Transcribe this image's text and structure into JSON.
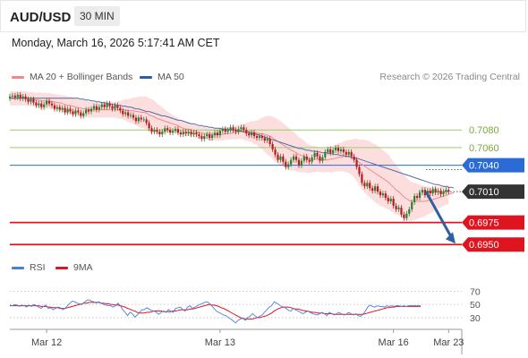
{
  "header": {
    "symbol": "AUD/USD",
    "timeframe": "30 MIN",
    "datetime": "Monday, March 16, 2026 5:17:41 AM CET"
  },
  "legend": {
    "ma_bollinger": "MA 20 + Bollinger Bands",
    "ma50": "MA 50",
    "credit": "Research © 2026 Trading Central",
    "rsi": "RSI",
    "ma9": "9MA"
  },
  "colors": {
    "ma20": "#f08a8a",
    "band": "#fbd3d3",
    "ma50": "#4f6faa",
    "candle_up": "#2e7d32",
    "candle_down": "#b71c1c",
    "resistance": "#9acd6e",
    "pivot": "#2a6bd6",
    "support": "#e0141e",
    "arrow": "#2e5f9e",
    "rsi": "#4a7fd6",
    "rsi_ma": "#e0141e"
  },
  "chart_data": [
    {
      "type": "candlestick",
      "y_range": [
        0.6935,
        0.713
      ],
      "x_range": [
        0,
        172
      ],
      "x_ticks": [
        {
          "label": "Mar 12",
          "x": 14
        },
        {
          "label": "Mar 13",
          "x": 80
        },
        {
          "label": "Mar 16",
          "x": 146
        },
        {
          "label": "Mar 23",
          "x": 167
        }
      ],
      "current_price": 0.701,
      "levels": [
        {
          "label": "0.7080",
          "value": 0.708,
          "kind": "resistance"
        },
        {
          "label": "0.7060",
          "value": 0.706,
          "kind": "resistance"
        },
        {
          "label": "0.7040",
          "value": 0.704,
          "kind": "pivot"
        },
        {
          "label": "0.7010",
          "value": 0.701,
          "kind": "last"
        },
        {
          "label": "0.6975",
          "value": 0.6975,
          "kind": "support"
        },
        {
          "label": "0.6950",
          "value": 0.695,
          "kind": "support"
        }
      ],
      "close": [
        0.7118,
        0.7119,
        0.7117,
        0.712,
        0.7116,
        0.7118,
        0.7115,
        0.7112,
        0.7115,
        0.7111,
        0.7108,
        0.711,
        0.7106,
        0.7109,
        0.7113,
        0.711,
        0.7108,
        0.7104,
        0.7106,
        0.7103,
        0.7105,
        0.71,
        0.7104,
        0.7101,
        0.7098,
        0.7102,
        0.71,
        0.7096,
        0.7099,
        0.7103,
        0.7101,
        0.7104,
        0.7107,
        0.7103,
        0.7106,
        0.7109,
        0.7106,
        0.711,
        0.7107,
        0.7104,
        0.7108,
        0.7105,
        0.7102,
        0.7098,
        0.71,
        0.7096,
        0.7097,
        0.7094,
        0.709,
        0.7094,
        0.7092,
        0.7092,
        0.7088,
        0.7082,
        0.7078,
        0.708,
        0.7078,
        0.7075,
        0.7078,
        0.7082,
        0.708,
        0.7077,
        0.7079,
        0.7081,
        0.7077,
        0.7075,
        0.7078,
        0.7076,
        0.7078,
        0.7075,
        0.7077,
        0.7075,
        0.7073,
        0.707,
        0.7073,
        0.7075,
        0.7071,
        0.7074,
        0.7077,
        0.7074,
        0.7079,
        0.7081,
        0.7078,
        0.708,
        0.7083,
        0.708,
        0.7078,
        0.7081,
        0.7083,
        0.708,
        0.7076,
        0.7074,
        0.7077,
        0.7073,
        0.7071,
        0.7073,
        0.7071,
        0.7068,
        0.707,
        0.7064,
        0.7058,
        0.7052,
        0.7046,
        0.705,
        0.7044,
        0.7038,
        0.7041,
        0.7046,
        0.705,
        0.7046,
        0.704,
        0.7045,
        0.705,
        0.7046,
        0.7044,
        0.7049,
        0.7054,
        0.705,
        0.7045,
        0.7049,
        0.7055,
        0.7058,
        0.7054,
        0.7057,
        0.706,
        0.7056,
        0.7058,
        0.7055,
        0.7052,
        0.7055,
        0.705,
        0.7046,
        0.7038,
        0.703,
        0.702,
        0.7016,
        0.702,
        0.7014,
        0.7011,
        0.7016,
        0.701,
        0.7006,
        0.7008,
        0.7003,
        0.6999,
        0.7002,
        0.6994,
        0.699,
        0.6992,
        0.6984,
        0.698,
        0.6985,
        0.699,
        0.6998,
        0.7005,
        0.7003,
        0.7009,
        0.7012,
        0.7006,
        0.7011,
        0.7008,
        0.7013,
        0.7009,
        0.7011,
        0.7007,
        0.701,
        0.7012,
        0.701
      ],
      "ma20": [
        0.7116,
        0.7116,
        0.7116,
        0.7116,
        0.7116,
        0.7116,
        0.7116,
        0.7115,
        0.7115,
        0.7115,
        0.7114,
        0.7114,
        0.7113,
        0.7113,
        0.7113,
        0.7113,
        0.7112,
        0.7112,
        0.7111,
        0.7111,
        0.711,
        0.7109,
        0.7108,
        0.7108,
        0.7107,
        0.7106,
        0.7105,
        0.7105,
        0.7104,
        0.7104,
        0.7103,
        0.7103,
        0.7103,
        0.7103,
        0.7103,
        0.7103,
        0.7103,
        0.7103,
        0.7103,
        0.7103,
        0.7103,
        0.7103,
        0.7103,
        0.7103,
        0.7103,
        0.7102,
        0.7102,
        0.7102,
        0.7101,
        0.7101,
        0.71,
        0.71,
        0.7099,
        0.7097,
        0.7096,
        0.7095,
        0.7093,
        0.7092,
        0.7091,
        0.709,
        0.7089,
        0.7088,
        0.7087,
        0.7086,
        0.7085,
        0.7083,
        0.7082,
        0.7081,
        0.7081,
        0.708,
        0.7079,
        0.7078,
        0.7077,
        0.7077,
        0.7076,
        0.7076,
        0.7075,
        0.7075,
        0.7075,
        0.7075,
        0.7075,
        0.7075,
        0.7076,
        0.7076,
        0.7076,
        0.7077,
        0.7077,
        0.7078,
        0.7078,
        0.7078,
        0.7078,
        0.7078,
        0.7078,
        0.7077,
        0.7077,
        0.7076,
        0.7076,
        0.7075,
        0.7074,
        0.7073,
        0.7071,
        0.7069,
        0.7067,
        0.7065,
        0.7063,
        0.7061,
        0.7059,
        0.7057,
        0.7056,
        0.7054,
        0.7052,
        0.7051,
        0.705,
        0.7048,
        0.7047,
        0.7047,
        0.7047,
        0.7047,
        0.7046,
        0.7046,
        0.7046,
        0.7046,
        0.7047,
        0.7047,
        0.7048,
        0.7049,
        0.7049,
        0.705,
        0.705,
        0.705,
        0.7049,
        0.7048,
        0.7046,
        0.7043,
        0.7041,
        0.7039,
        0.7037,
        0.7035,
        0.7033,
        0.7031,
        0.7029,
        0.7027,
        0.7025,
        0.7023,
        0.7021,
        0.7018,
        0.7015,
        0.7012,
        0.701,
        0.7007,
        0.7004,
        0.7002,
        0.7,
        0.6999,
        0.6999,
        0.6999,
        0.6999,
        0.6999,
        0.6999,
        0.7,
        0.7,
        0.7001,
        0.7002,
        0.7003,
        0.7004,
        0.7005,
        0.7006,
        0.7007,
        0.7008,
        0.7009
      ],
      "band_width": [
        0.0008,
        0.0008,
        0.0008,
        0.0008,
        0.0008,
        0.0008,
        0.0008,
        0.0008,
        0.0008,
        0.0008,
        0.0008,
        0.0009,
        0.0009,
        0.0009,
        0.0009,
        0.0009,
        0.0009,
        0.0009,
        0.0009,
        0.0009,
        0.0009,
        0.001,
        0.001,
        0.001,
        0.001,
        0.001,
        0.001,
        0.001,
        0.001,
        0.001,
        0.0009,
        0.0009,
        0.0009,
        0.0009,
        0.0009,
        0.0009,
        0.0009,
        0.0009,
        0.0009,
        0.0009,
        0.0009,
        0.001,
        0.001,
        0.0011,
        0.0012,
        0.0013,
        0.0014,
        0.0015,
        0.0016,
        0.0017,
        0.0018,
        0.0018,
        0.0019,
        0.0019,
        0.0019,
        0.0018,
        0.0017,
        0.0016,
        0.0015,
        0.0013,
        0.0012,
        0.0011,
        0.001,
        0.0009,
        0.0009,
        0.0008,
        0.0008,
        0.0008,
        0.0008,
        0.0007,
        0.0007,
        0.0007,
        0.0007,
        0.0007,
        0.0007,
        0.0007,
        0.0007,
        0.0007,
        0.0007,
        0.0007,
        0.0007,
        0.0007,
        0.0007,
        0.0007,
        0.0007,
        0.0007,
        0.0008,
        0.0008,
        0.0008,
        0.0009,
        0.001,
        0.0011,
        0.0012,
        0.0013,
        0.0014,
        0.0016,
        0.0018,
        0.002,
        0.0022,
        0.0023,
        0.0024,
        0.0025,
        0.0025,
        0.0025,
        0.0025,
        0.0024,
        0.0024,
        0.0023,
        0.0022,
        0.0021,
        0.002,
        0.0019,
        0.0018,
        0.0017,
        0.0016,
        0.0015,
        0.0015,
        0.0014,
        0.0014,
        0.0014,
        0.0014,
        0.0014,
        0.0015,
        0.0015,
        0.0015,
        0.0016,
        0.0016,
        0.0017,
        0.0018,
        0.0019,
        0.002,
        0.0022,
        0.0024,
        0.0026,
        0.0028,
        0.003,
        0.0031,
        0.0032,
        0.0032,
        0.0033,
        0.0033,
        0.0033,
        0.0032,
        0.0032,
        0.0031,
        0.003,
        0.0029,
        0.0028,
        0.0027,
        0.0026,
        0.0025,
        0.0024,
        0.0023,
        0.0022,
        0.0021,
        0.002,
        0.0019,
        0.0018,
        0.0017,
        0.0016,
        0.0015,
        0.0014,
        0.0013,
        0.0012,
        0.0012,
        0.0011,
        0.0011,
        0.0011,
        0.0011,
        0.0011,
        0.0011,
        0.0011,
        0.0011,
        0.0011
      ],
      "ma50": [
        0.7116,
        0.7116,
        0.7116,
        0.7116,
        0.7116,
        0.7116,
        0.7116,
        0.7116,
        0.7116,
        0.7116,
        0.7116,
        0.7116,
        0.7116,
        0.7116,
        0.7116,
        0.7116,
        0.7116,
        0.7116,
        0.7116,
        0.7116,
        0.7116,
        0.7116,
        0.7116,
        0.7116,
        0.7116,
        0.7116,
        0.7116,
        0.7115,
        0.7115,
        0.7114,
        0.7114,
        0.7113,
        0.7113,
        0.7112,
        0.7112,
        0.7111,
        0.7111,
        0.711,
        0.711,
        0.7109,
        0.7109,
        0.7108,
        0.7108,
        0.7107,
        0.7107,
        0.7106,
        0.7106,
        0.7105,
        0.7104,
        0.7104,
        0.7103,
        0.7102,
        0.7101,
        0.7101,
        0.71,
        0.7099,
        0.7098,
        0.7097,
        0.7096,
        0.7096,
        0.7095,
        0.7094,
        0.7093,
        0.7092,
        0.7091,
        0.7091,
        0.709,
        0.7089,
        0.7088,
        0.7087,
        0.7087,
        0.7086,
        0.7085,
        0.7085,
        0.7084,
        0.7084,
        0.7083,
        0.7083,
        0.7082,
        0.7082,
        0.7082,
        0.7081,
        0.7081,
        0.7081,
        0.708,
        0.708,
        0.708,
        0.7079,
        0.7079,
        0.7078,
        0.7078,
        0.7077,
        0.7076,
        0.7076,
        0.7075,
        0.7074,
        0.7073,
        0.7072,
        0.7071,
        0.707,
        0.7069,
        0.7068,
        0.7067,
        0.7066,
        0.7065,
        0.7064,
        0.7063,
        0.7062,
        0.7061,
        0.706,
        0.7059,
        0.7059,
        0.7058,
        0.7057,
        0.7057,
        0.7056,
        0.7056,
        0.7055,
        0.7055,
        0.7054,
        0.7054,
        0.7054,
        0.7053,
        0.7053,
        0.7052,
        0.7052,
        0.7051,
        0.7051,
        0.705,
        0.705,
        0.7049,
        0.7048,
        0.7048,
        0.7047,
        0.7046,
        0.7045,
        0.7044,
        0.7043,
        0.7042,
        0.7041,
        0.704,
        0.7039,
        0.7038,
        0.7037,
        0.7036,
        0.7035,
        0.7034,
        0.7033,
        0.7032,
        0.7031,
        0.703,
        0.7029,
        0.7028,
        0.7027,
        0.7026,
        0.7025,
        0.7024,
        0.7023,
        0.7022,
        0.7021,
        0.702,
        0.7019,
        0.7018,
        0.7018,
        0.7017,
        0.7016,
        0.7016,
        0.7015,
        0.7015,
        0.7014
      ]
    },
    {
      "type": "line",
      "name": "RSI",
      "y_range": [
        15,
        80
      ],
      "y_ticks": [
        "70",
        "50",
        "30"
      ],
      "y_tick_values": [
        70,
        50,
        30
      ],
      "rsi": [
        49,
        48,
        50,
        49,
        47,
        49,
        48,
        46,
        49,
        47,
        50,
        48,
        46,
        44,
        47,
        49,
        44,
        45,
        42,
        44,
        46,
        45,
        42,
        44,
        48,
        52,
        55,
        54,
        52,
        51,
        50,
        53,
        56,
        57,
        55,
        54,
        52,
        54,
        52,
        50,
        49,
        48,
        48,
        46,
        48,
        52,
        48,
        42,
        38,
        33,
        38,
        36,
        31,
        34,
        38,
        42,
        42,
        45,
        43,
        41,
        40,
        38,
        35,
        38,
        40,
        38,
        42,
        40,
        38,
        44,
        45,
        46,
        42,
        40,
        46,
        48,
        44,
        46,
        48,
        50,
        51,
        53,
        54,
        52,
        48,
        44,
        40,
        38,
        36,
        34,
        33,
        30,
        28,
        25,
        22,
        26,
        28,
        29,
        26,
        30,
        32,
        36,
        33,
        30,
        32,
        34,
        38,
        42,
        46,
        48,
        54,
        52,
        50,
        47,
        46,
        44,
        41,
        40,
        44,
        42,
        40,
        38,
        36,
        38,
        40,
        38,
        36,
        35,
        34,
        36,
        38,
        36,
        33,
        38,
        36,
        34,
        36,
        38,
        36,
        34,
        35,
        38,
        36,
        34,
        36,
        33,
        32,
        35,
        40,
        46,
        49,
        47,
        46,
        48,
        47,
        47,
        46,
        48,
        47,
        48,
        47,
        48,
        48,
        47,
        48,
        47,
        48,
        48,
        48,
        48,
        48,
        48
      ],
      "rsi_ma": [
        48,
        48,
        48,
        48,
        48,
        48,
        48,
        48,
        48,
        48,
        48,
        48,
        48,
        47,
        47,
        47,
        46,
        46,
        45,
        45,
        45,
        44,
        44,
        44,
        45,
        46,
        47,
        48,
        49,
        50,
        51,
        52,
        52,
        53,
        53,
        53,
        53,
        53,
        52,
        52,
        51,
        51,
        50,
        50,
        49,
        49,
        48,
        47,
        46,
        44,
        43,
        41,
        40,
        38,
        37,
        37,
        37,
        38,
        38,
        39,
        40,
        40,
        40,
        40,
        39,
        39,
        39,
        39,
        40,
        40,
        41,
        42,
        42,
        42,
        42,
        43,
        43,
        44,
        45,
        46,
        47,
        48,
        49,
        50,
        49,
        49,
        48,
        47,
        45,
        44,
        42,
        40,
        38,
        36,
        34,
        32,
        30,
        29,
        28,
        28,
        28,
        28,
        29,
        30,
        30,
        31,
        32,
        33,
        35,
        37,
        40,
        42,
        44,
        45,
        46,
        46,
        46,
        45,
        44,
        43,
        43,
        42,
        41,
        40,
        40,
        39,
        38,
        38,
        37,
        37,
        37,
        36,
        36,
        36,
        36,
        35,
        35,
        35,
        35,
        35,
        35,
        35,
        35,
        35,
        35,
        35,
        35,
        35,
        36,
        37,
        38,
        39,
        40,
        41,
        42,
        43,
        44,
        45,
        45,
        46,
        46,
        47,
        47,
        47,
        47,
        47,
        47,
        47,
        47,
        47,
        47,
        47
      ]
    }
  ]
}
